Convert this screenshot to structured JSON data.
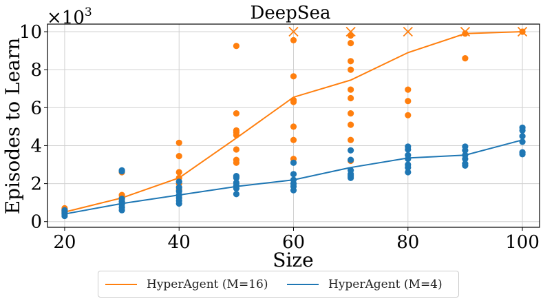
{
  "chart_data": {
    "type": "scatter",
    "title": "DeepSea",
    "xlabel": "Size",
    "ylabel": "Episodes to Learn",
    "y_scale_label": "×10³",
    "y_scale_base": "×10",
    "y_scale_exp": "3",
    "xlim": [
      17,
      103
    ],
    "ylim": [
      -0.3,
      10.4
    ],
    "xticks": [
      20,
      40,
      60,
      80,
      100
    ],
    "yticks": [
      0,
      2,
      4,
      6,
      8,
      10
    ],
    "grid": true,
    "legend_position": "bottom-center-outside",
    "colors": {
      "M16": "#ff7f0e",
      "M4": "#1f77b4",
      "grid": "#d0d0d0"
    },
    "series": [
      {
        "name": "HyperAgent (M=16)",
        "color": "#ff7f0e",
        "x": [
          20,
          30,
          40,
          50,
          60,
          70,
          80,
          90,
          100
        ],
        "mean": [
          0.5,
          1.25,
          2.3,
          4.4,
          6.55,
          7.45,
          8.9,
          9.9,
          10.0
        ],
        "points": [
          [
            20,
            0.45
          ],
          [
            20,
            0.55
          ],
          [
            20,
            0.62
          ],
          [
            20,
            0.7
          ],
          [
            30,
            1.05
          ],
          [
            30,
            1.25
          ],
          [
            30,
            1.4
          ],
          [
            30,
            2.6
          ],
          [
            40,
            1.7
          ],
          [
            40,
            2.0
          ],
          [
            40,
            2.3
          ],
          [
            40,
            2.6
          ],
          [
            40,
            3.45
          ],
          [
            40,
            4.15
          ],
          [
            50,
            2.35
          ],
          [
            50,
            3.1
          ],
          [
            50,
            3.25
          ],
          [
            50,
            3.8
          ],
          [
            50,
            4.55
          ],
          [
            50,
            4.7
          ],
          [
            50,
            4.8
          ],
          [
            50,
            5.7
          ],
          [
            50,
            9.25
          ],
          [
            60,
            3.3
          ],
          [
            60,
            4.3
          ],
          [
            60,
            5.0
          ],
          [
            60,
            6.3
          ],
          [
            60,
            6.4
          ],
          [
            60,
            7.65
          ],
          [
            60,
            9.55
          ],
          [
            70,
            3.2
          ],
          [
            70,
            4.3
          ],
          [
            70,
            5.1
          ],
          [
            70,
            5.7
          ],
          [
            70,
            6.5
          ],
          [
            70,
            6.95
          ],
          [
            70,
            8.0
          ],
          [
            70,
            8.45
          ],
          [
            70,
            9.4
          ],
          [
            70,
            9.8
          ],
          [
            80,
            5.6
          ],
          [
            80,
            6.35
          ],
          [
            80,
            6.95
          ],
          [
            90,
            8.6
          ],
          [
            90,
            9.9
          ],
          [
            100,
            10.0
          ]
        ],
        "failure_markers": [
          [
            60,
            10.0
          ],
          [
            70,
            10.0
          ],
          [
            80,
            10.0
          ],
          [
            90,
            10.0
          ],
          [
            100,
            10.0
          ]
        ]
      },
      {
        "name": "HyperAgent (M=4)",
        "color": "#1f77b4",
        "x": [
          20,
          30,
          40,
          50,
          60,
          70,
          80,
          90,
          100
        ],
        "mean": [
          0.4,
          0.95,
          1.4,
          1.85,
          2.2,
          2.85,
          3.35,
          3.5,
          4.3
        ],
        "points": [
          [
            20,
            0.3
          ],
          [
            20,
            0.4
          ],
          [
            20,
            0.5
          ],
          [
            20,
            0.6
          ],
          [
            30,
            0.6
          ],
          [
            30,
            0.75
          ],
          [
            30,
            0.9
          ],
          [
            30,
            1.05
          ],
          [
            30,
            1.2
          ],
          [
            30,
            2.65
          ],
          [
            30,
            2.7
          ],
          [
            40,
            0.95
          ],
          [
            40,
            1.1
          ],
          [
            40,
            1.25
          ],
          [
            40,
            1.4
          ],
          [
            40,
            1.6
          ],
          [
            40,
            1.8
          ],
          [
            40,
            2.1
          ],
          [
            50,
            1.45
          ],
          [
            50,
            1.75
          ],
          [
            50,
            1.9
          ],
          [
            50,
            2.05
          ],
          [
            50,
            2.3
          ],
          [
            50,
            2.4
          ],
          [
            60,
            1.65
          ],
          [
            60,
            1.85
          ],
          [
            60,
            2.0
          ],
          [
            60,
            2.2
          ],
          [
            60,
            2.5
          ],
          [
            60,
            3.1
          ],
          [
            70,
            2.3
          ],
          [
            70,
            2.4
          ],
          [
            70,
            2.5
          ],
          [
            70,
            2.7
          ],
          [
            70,
            3.25
          ],
          [
            70,
            3.75
          ],
          [
            80,
            2.6
          ],
          [
            80,
            2.85
          ],
          [
            80,
            3.0
          ],
          [
            80,
            3.3
          ],
          [
            80,
            3.5
          ],
          [
            80,
            3.8
          ],
          [
            80,
            3.95
          ],
          [
            90,
            2.95
          ],
          [
            90,
            3.05
          ],
          [
            90,
            3.3
          ],
          [
            90,
            3.5
          ],
          [
            90,
            3.75
          ],
          [
            90,
            3.95
          ],
          [
            100,
            3.55
          ],
          [
            100,
            3.65
          ],
          [
            100,
            4.2
          ],
          [
            100,
            4.5
          ],
          [
            100,
            4.8
          ],
          [
            100,
            4.95
          ]
        ]
      }
    ]
  }
}
